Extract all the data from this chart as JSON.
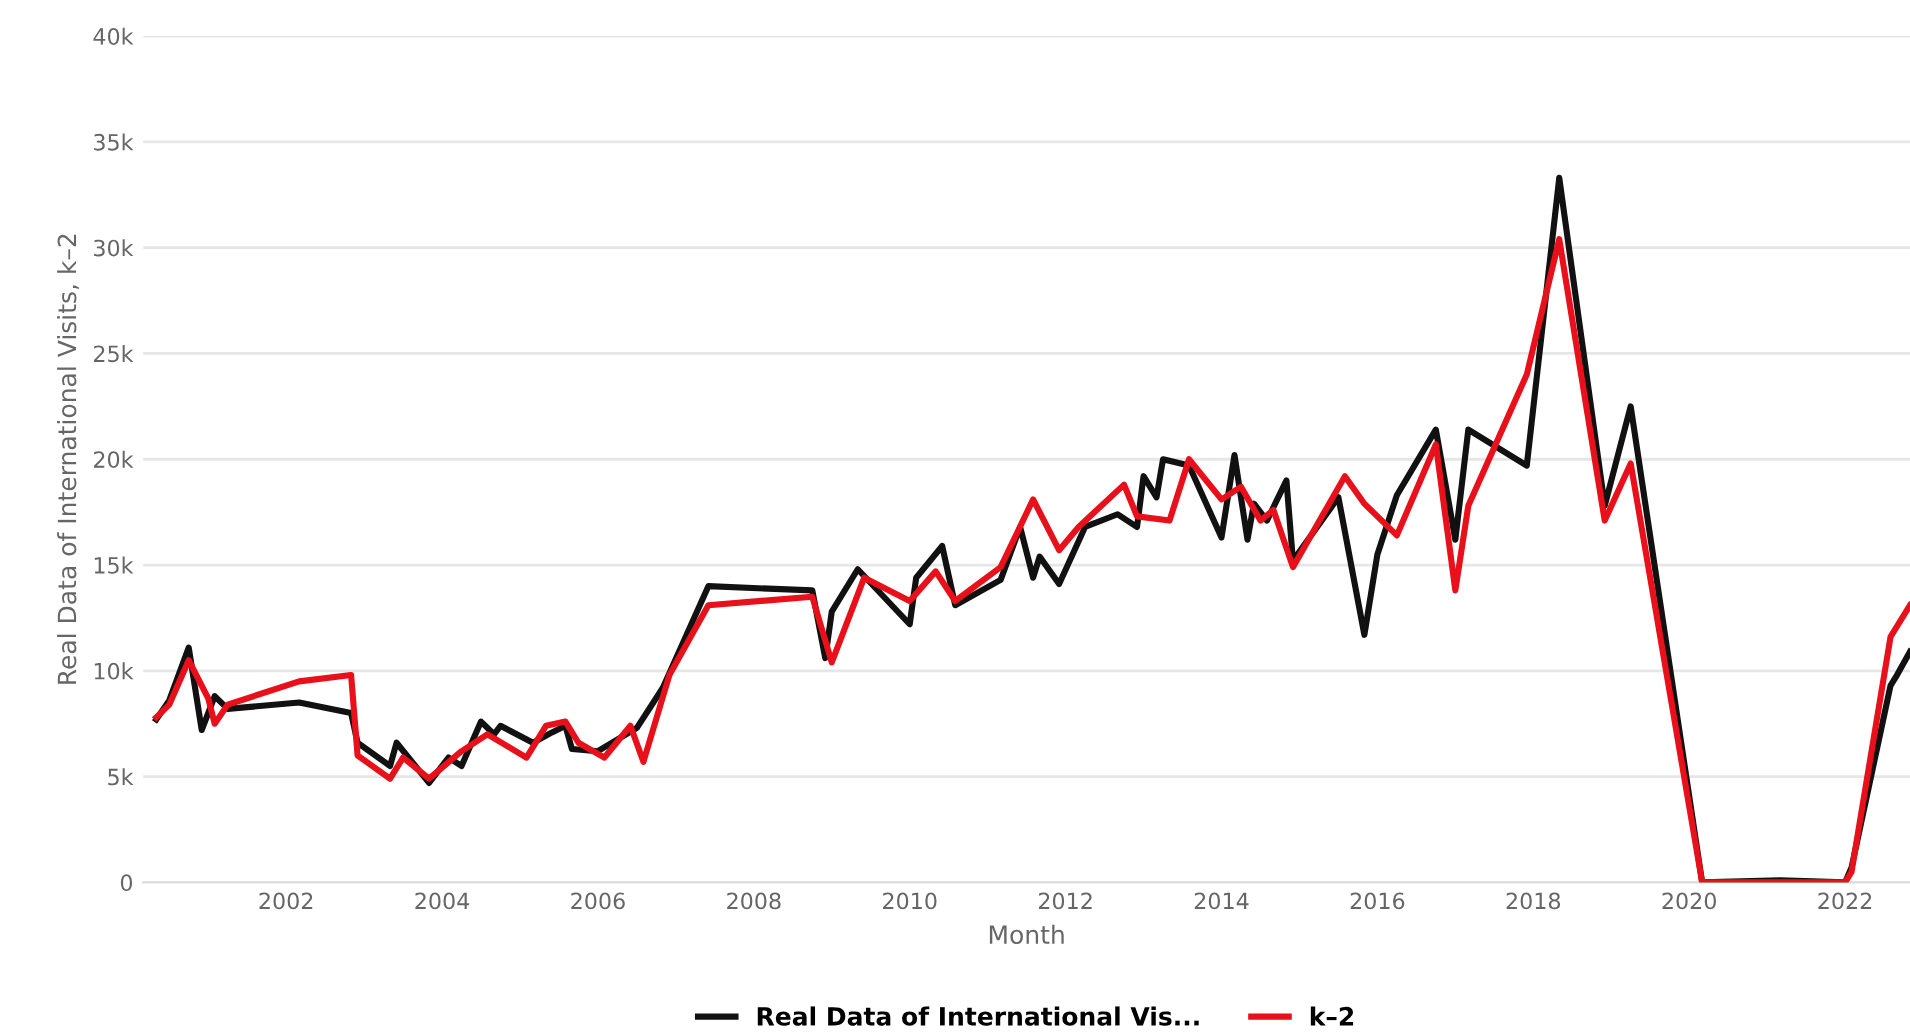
{
  "chart_data": {
    "type": "line",
    "xlabel": "Month",
    "ylabel": "Real Data of International Visits, k–2",
    "xlim": [
      "2000-03",
      "2022-11"
    ],
    "xticks": [
      {
        "value": "2002-01",
        "label": "2002"
      },
      {
        "value": "2004-01",
        "label": "2004"
      },
      {
        "value": "2006-01",
        "label": "2006"
      },
      {
        "value": "2008-01",
        "label": "2008"
      },
      {
        "value": "2010-01",
        "label": "2010"
      },
      {
        "value": "2012-01",
        "label": "2012"
      },
      {
        "value": "2014-01",
        "label": "2014"
      },
      {
        "value": "2016-01",
        "label": "2016"
      },
      {
        "value": "2018-01",
        "label": "2018"
      },
      {
        "value": "2020-01",
        "label": "2020"
      },
      {
        "value": "2022-01",
        "label": "2022"
      }
    ],
    "ylim": [
      0,
      40000
    ],
    "yticks": [
      0,
      {
        "value": 5000,
        "label": "5k"
      },
      {
        "value": 10000,
        "label": "10k"
      },
      {
        "value": 15000,
        "label": "15k"
      },
      {
        "value": 20000,
        "label": "20k"
      },
      {
        "value": 25000,
        "label": "25k"
      },
      {
        "value": 30000,
        "label": "30k"
      },
      {
        "value": 35000,
        "label": "35k"
      },
      {
        "value": 40000,
        "label": "40k"
      }
    ],
    "grid": "y",
    "legend": "bottom",
    "marker": "none",
    "line_style": "solid",
    "series": [
      {
        "name": "Real Data of International Vis...",
        "color": "#111111",
        "x": [
          "2000-05",
          "2000-07",
          "2000-10",
          "2000-12",
          "2001-02",
          "2001-04",
          "2002-03",
          "2002-11",
          "2002-12",
          "2003-05",
          "2003-06",
          "2003-11",
          "2004-02",
          "2004-04",
          "2004-07",
          "2004-09",
          "2004-10",
          "2005-03",
          "2005-06",
          "2005-08",
          "2005-09",
          "2006-01",
          "2006-07",
          "2006-11",
          "2007-06",
          "2008-10",
          "2008-12",
          "2009-01",
          "2009-05",
          "2010-01",
          "2010-02",
          "2010-06",
          "2010-08",
          "2011-03",
          "2011-06",
          "2011-08",
          "2011-09",
          "2011-12",
          "2012-04",
          "2012-09",
          "2012-12",
          "2013-01",
          "2013-03",
          "2013-04",
          "2013-08",
          "2014-01",
          "2014-03",
          "2014-05",
          "2014-06",
          "2014-08",
          "2014-11",
          "2014-12",
          "2015-07",
          "2015-11",
          "2016-01",
          "2016-04",
          "2016-10",
          "2017-01",
          "2017-03",
          "2017-12",
          "2018-05",
          "2018-12",
          "2019-04",
          "2020-03",
          "2021-03",
          "2022-01",
          "2022-02",
          "2022-08",
          "2022-09",
          "2022-11"
        ],
        "values": [
          7700,
          8600,
          11100,
          7200,
          8800,
          8200,
          8500,
          8000,
          6600,
          5500,
          6600,
          4700,
          5900,
          5500,
          7600,
          7000,
          7400,
          6600,
          7100,
          7400,
          6300,
          6200,
          7300,
          9200,
          14000,
          13800,
          10600,
          12800,
          14800,
          12200,
          14400,
          15900,
          13100,
          14300,
          16800,
          14400,
          15400,
          14100,
          16800,
          17400,
          16800,
          19200,
          18200,
          20000,
          19700,
          16300,
          20200,
          16200,
          17900,
          17100,
          19000,
          15200,
          18200,
          11700,
          15500,
          18300,
          21400,
          16200,
          21400,
          19700,
          33300,
          17800,
          22500,
          0,
          100,
          0,
          700,
          9300,
          9800,
          10900
        ]
      },
      {
        "name": "k–2",
        "color": "#e8101a",
        "x": [
          "2000-05",
          "2000-07",
          "2000-10",
          "2001-01",
          "2001-02",
          "2001-04",
          "2002-03",
          "2002-11",
          "2002-12",
          "2003-05",
          "2003-07",
          "2003-11",
          "2004-04",
          "2004-08",
          "2005-02",
          "2005-05",
          "2005-08",
          "2005-10",
          "2006-02",
          "2006-06",
          "2006-08",
          "2006-12",
          "2007-06",
          "2008-10",
          "2009-01",
          "2009-06",
          "2010-01",
          "2010-05",
          "2010-08",
          "2011-03",
          "2011-08",
          "2011-12",
          "2012-03",
          "2012-10",
          "2012-12",
          "2013-05",
          "2013-08",
          "2014-01",
          "2014-04",
          "2014-07",
          "2014-09",
          "2014-12",
          "2015-08",
          "2015-11",
          "2016-04",
          "2016-10",
          "2017-01",
          "2017-03",
          "2017-12",
          "2018-05",
          "2018-12",
          "2019-04",
          "2020-03",
          "2022-01",
          "2022-02",
          "2022-08",
          "2022-11"
        ],
        "values": [
          7800,
          8400,
          10500,
          8700,
          7500,
          8400,
          9500,
          9800,
          6000,
          4900,
          5900,
          4900,
          6200,
          7000,
          5900,
          7400,
          7600,
          6600,
          5900,
          7400,
          5700,
          9800,
          13100,
          13500,
          10400,
          14400,
          13300,
          14700,
          13300,
          14900,
          18100,
          15700,
          16800,
          18800,
          17300,
          17100,
          20000,
          18100,
          18700,
          17100,
          17600,
          14900,
          19200,
          17900,
          16400,
          20700,
          13800,
          17800,
          24000,
          30400,
          17100,
          19800,
          0,
          0,
          500,
          11600,
          13100
        ]
      }
    ]
  }
}
